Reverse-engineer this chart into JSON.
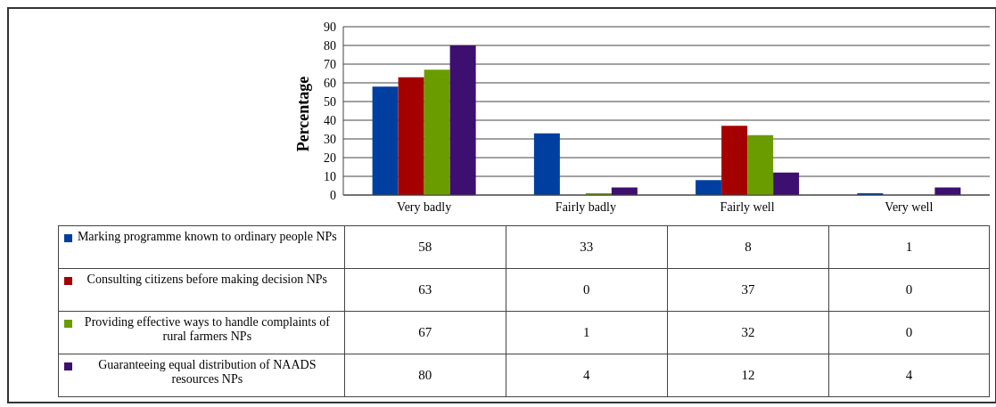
{
  "chart_data": {
    "type": "bar",
    "ylabel": "Percentage",
    "categories": [
      "Very badly",
      "Fairly badly",
      "Fairly well",
      "Very well"
    ],
    "series": [
      {
        "name": "Marking programme known to ordinary people NPs",
        "color": "#003f9f",
        "values": [
          58,
          33,
          8,
          1
        ]
      },
      {
        "name": "Consulting citizens before making decision NPs",
        "color": "#a50000",
        "values": [
          63,
          0,
          37,
          0
        ]
      },
      {
        "name": "Providing effective ways to handle complaints of rural farmers NPs",
        "color": "#6a9c00",
        "values": [
          67,
          1,
          32,
          0
        ]
      },
      {
        "name": "Guaranteeing equal distribution of NAADS resources NPs",
        "color": "#3d0f70",
        "values": [
          80,
          4,
          12,
          4
        ]
      }
    ],
    "ylim": [
      0,
      90
    ],
    "yticks": [
      0,
      10,
      20,
      30,
      40,
      50,
      60,
      70,
      80,
      90
    ],
    "grid": "y",
    "legend": "bottom",
    "data_labels": true
  }
}
